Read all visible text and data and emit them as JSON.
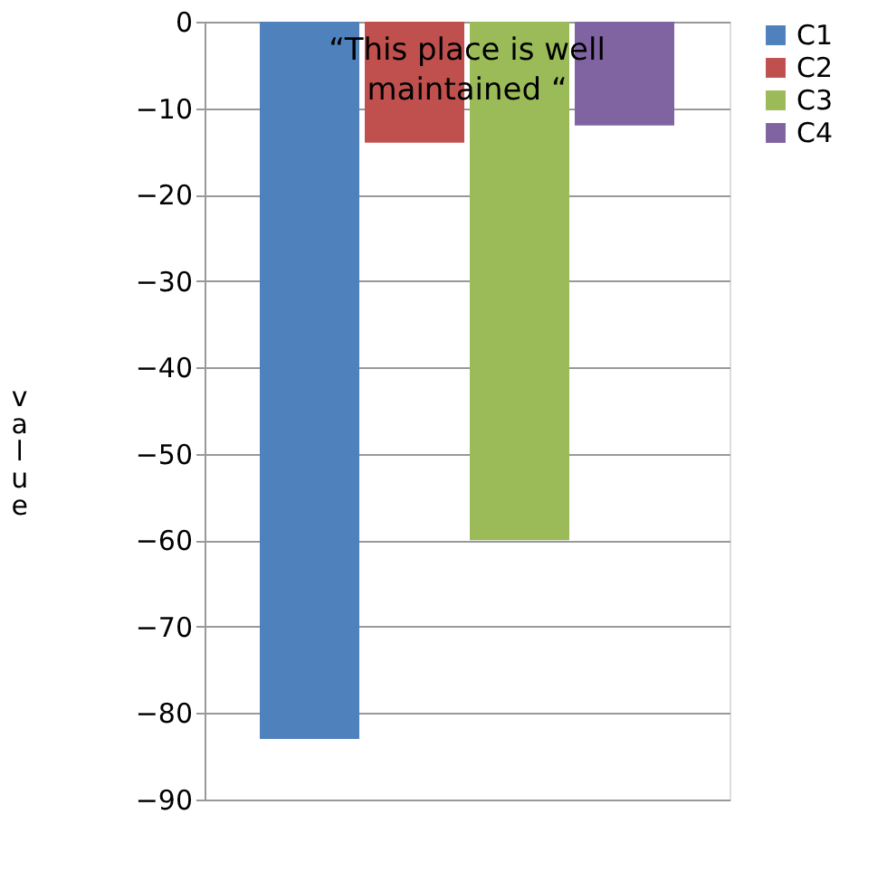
{
  "chart_data": {
    "type": "bar",
    "title": "“This place is  well\nmaintained “",
    "ylabel": "value",
    "categories": [
      null
    ],
    "series": [
      {
        "name": "C1",
        "color": "#4f81bd",
        "values": [
          -83
        ]
      },
      {
        "name": "C2",
        "color": "#c0504d",
        "values": [
          -14
        ]
      },
      {
        "name": "C3",
        "color": "#9bbb59",
        "values": [
          -60
        ]
      },
      {
        "name": "C4",
        "color": "#8064a2",
        "values": [
          -12
        ]
      }
    ],
    "ylim": [
      -90,
      0
    ],
    "yticks": [
      0,
      -10,
      -20,
      -30,
      -40,
      -50,
      -60,
      -70,
      -80,
      -90
    ],
    "grid": "y",
    "legend": "right"
  }
}
